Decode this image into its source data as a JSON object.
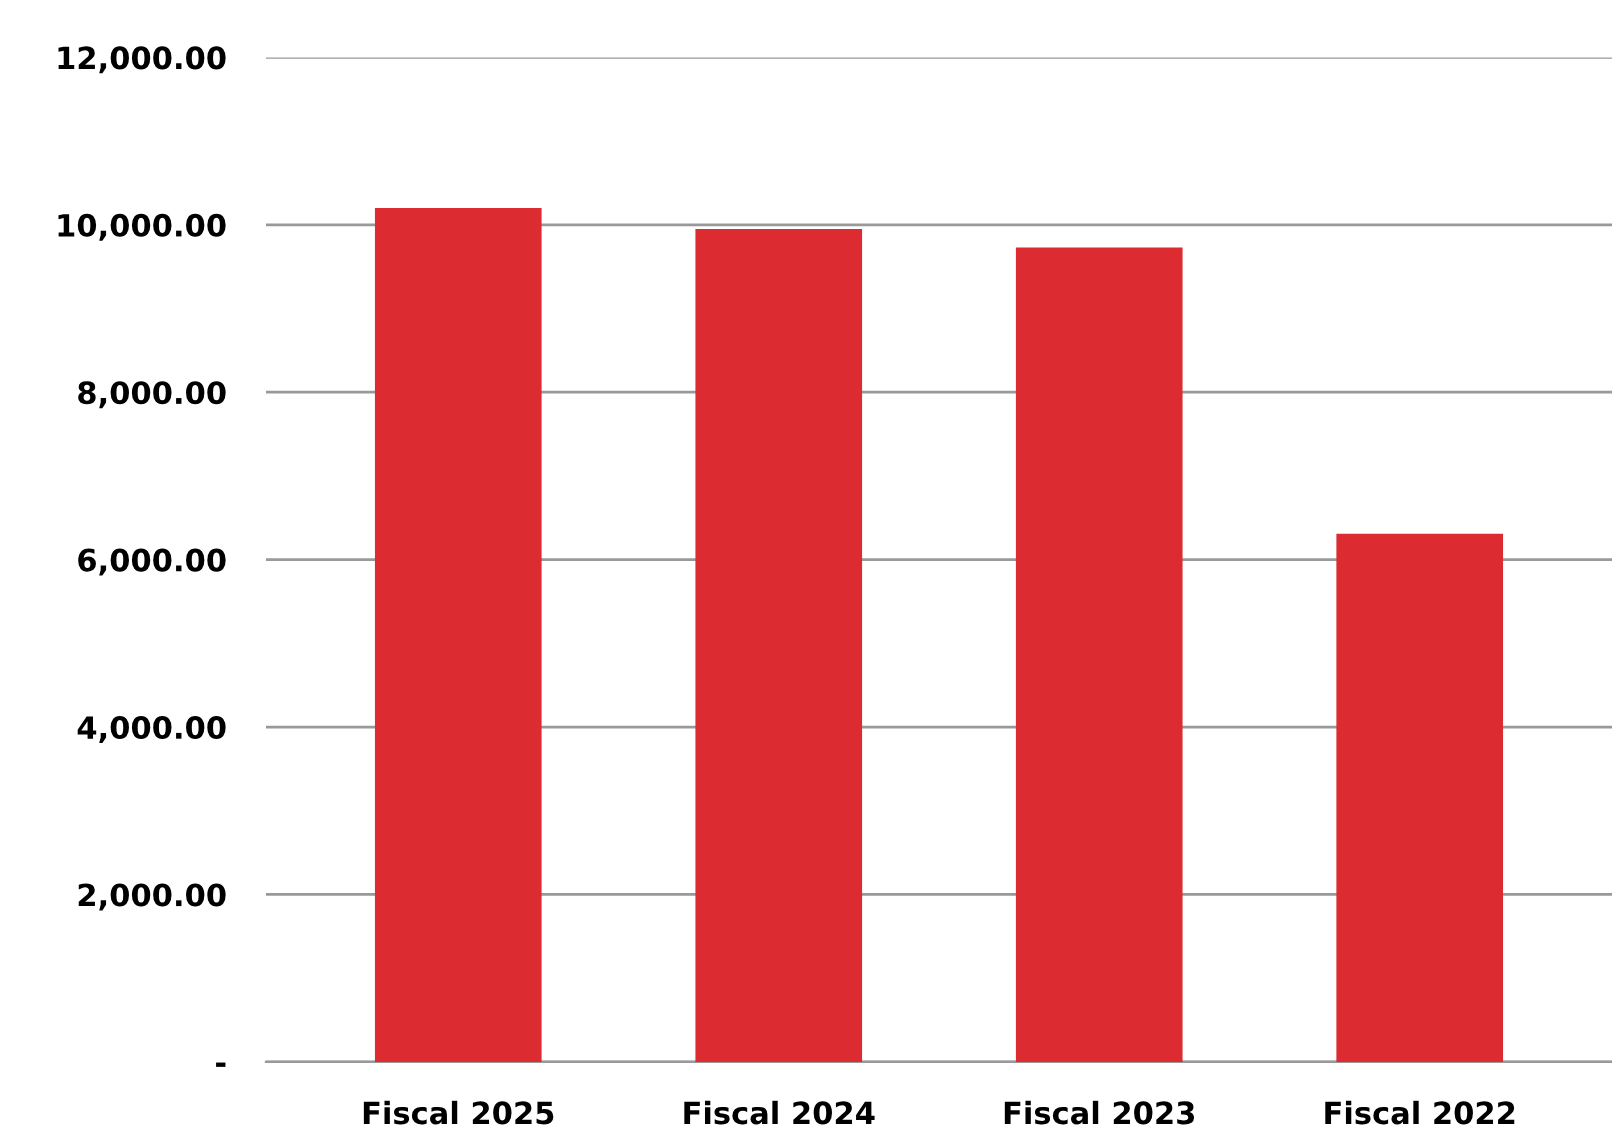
{
  "chart_data": {
    "type": "bar",
    "categories": [
      "Fiscal 2025",
      "Fiscal 2024",
      "Fiscal 2023",
      "Fiscal 2022"
    ],
    "values": [
      10200,
      9950,
      9730,
      6310
    ],
    "color": "#dc2b31",
    "ylim": [
      0,
      12000
    ],
    "yticks": [
      {
        "value": 0,
        "label": "-"
      },
      {
        "value": 2000,
        "label": "2,000.00"
      },
      {
        "value": 4000,
        "label": "4,000.00"
      },
      {
        "value": 6000,
        "label": "6,000.00"
      },
      {
        "value": 8000,
        "label": "8,000.00"
      },
      {
        "value": 10000,
        "label": "10,000.00"
      },
      {
        "value": 12000,
        "label": "12,000.00"
      }
    ],
    "grid": "y"
  }
}
